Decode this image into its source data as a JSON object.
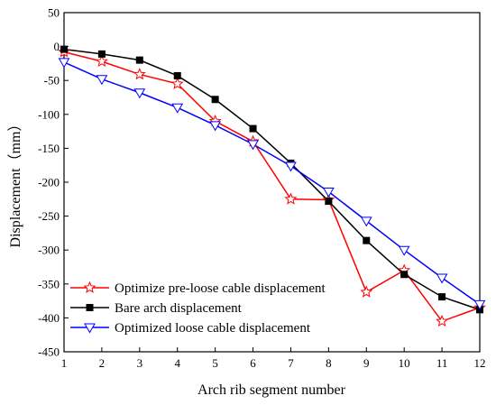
{
  "chart_data": {
    "type": "line",
    "title": "",
    "xlabel": "Arch rib segment number",
    "ylabel": "Displacement（mm）",
    "xlim": [
      1,
      12
    ],
    "ylim": [
      -450,
      50
    ],
    "x_ticks": [
      1,
      2,
      3,
      4,
      5,
      6,
      7,
      8,
      9,
      10,
      11,
      12
    ],
    "y_ticks": [
      50,
      0,
      -50,
      -100,
      -150,
      -200,
      -250,
      -300,
      -350,
      -400,
      -450
    ],
    "grid": false,
    "legend_position": "bottom-left",
    "series": [
      {
        "name": "Optimize pre-loose cable displacement",
        "marker": "star-open",
        "color": "#ff0000",
        "x": [
          1,
          2,
          3,
          4,
          5,
          6,
          7,
          8,
          9,
          10,
          11,
          12
        ],
        "values": [
          -8,
          -22,
          -41,
          -55,
          -110,
          -140,
          -225,
          -226,
          -362,
          -330,
          -405,
          -385
        ]
      },
      {
        "name": "Bare arch displacement",
        "marker": "square-filled",
        "color": "#000000",
        "x": [
          1,
          2,
          3,
          4,
          5,
          6,
          7,
          8,
          9,
          10,
          11,
          12
        ],
        "values": [
          -4,
          -11,
          -20,
          -43,
          -78,
          -121,
          -172,
          -228,
          -286,
          -336,
          -369,
          -388
        ]
      },
      {
        "name": "Optimized loose cable displacement",
        "marker": "triangle-down-open",
        "color": "#0000ff",
        "x": [
          1,
          2,
          3,
          4,
          5,
          6,
          7,
          8,
          9,
          10,
          11,
          12
        ],
        "values": [
          -23,
          -48,
          -68,
          -90,
          -116,
          -144,
          -176,
          -214,
          -257,
          -300,
          -341,
          -380
        ]
      }
    ]
  }
}
